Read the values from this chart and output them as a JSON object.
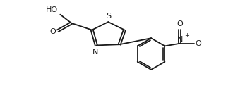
{
  "bg_color": "#ffffff",
  "line_color": "#1a1a1a",
  "line_width": 1.3,
  "font_size": 7.0,
  "figsize": [
    3.3,
    1.42
  ],
  "dpi": 100,
  "xlim": [
    0,
    10.5
  ],
  "ylim": [
    0,
    4.5
  ]
}
